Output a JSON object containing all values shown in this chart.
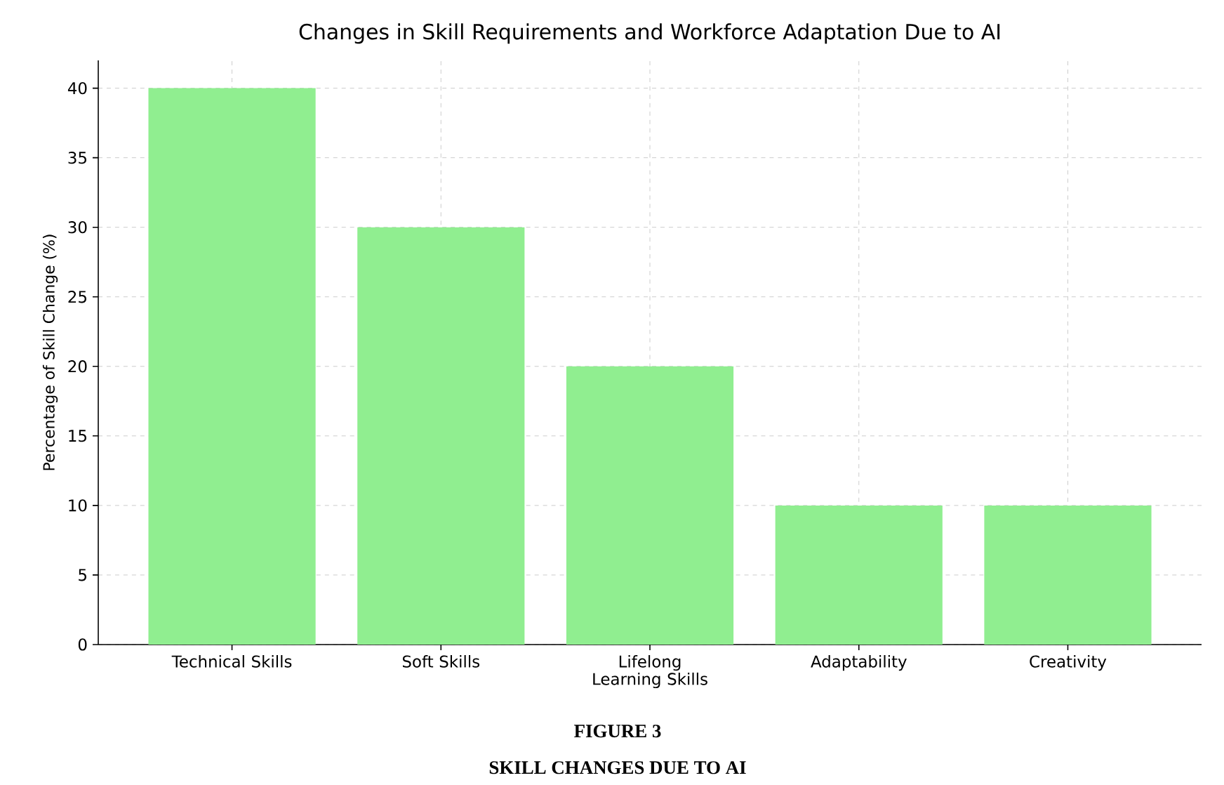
{
  "chart_data": {
    "type": "bar",
    "title": "Changes in Skill Requirements and Workforce Adaptation Due to AI",
    "ylabel": "Percentage of Skill Change (%)",
    "categories": [
      "Technical Skills",
      "Soft Skills",
      "Lifelong Learning Skills",
      "Adaptability",
      "Creativity"
    ],
    "values": [
      40,
      30,
      20,
      10,
      10
    ],
    "color": "#90ee90",
    "ylim": [
      0,
      42
    ],
    "yticks": [
      0,
      5,
      10,
      15,
      20,
      25,
      30,
      35,
      40
    ],
    "grid": true,
    "annotations": [
      "FIGURE 3",
      "SKILL CHANGES DUE TO AI"
    ]
  }
}
